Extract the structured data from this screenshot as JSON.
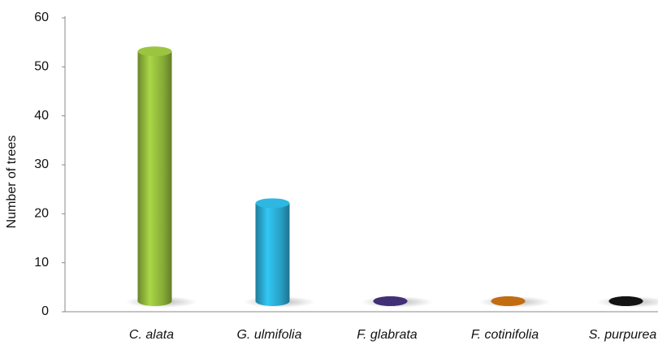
{
  "chart_data": {
    "type": "bar",
    "y_label": "Number of trees",
    "categories": [
      "C. alata",
      "G. ulmifolia",
      "F. glabrata",
      "F. cotinifolia",
      "S. purpurea"
    ],
    "values": [
      51,
      20,
      0,
      0,
      0
    ],
    "colors": [
      "#8db33a",
      "#2aa6cc",
      "#3b2c6a",
      "#b0620f",
      "#111111"
    ],
    "ylim": [
      0,
      60
    ],
    "yticks": [
      0,
      10,
      20,
      30,
      40,
      50,
      60
    ],
    "grid": false
  }
}
